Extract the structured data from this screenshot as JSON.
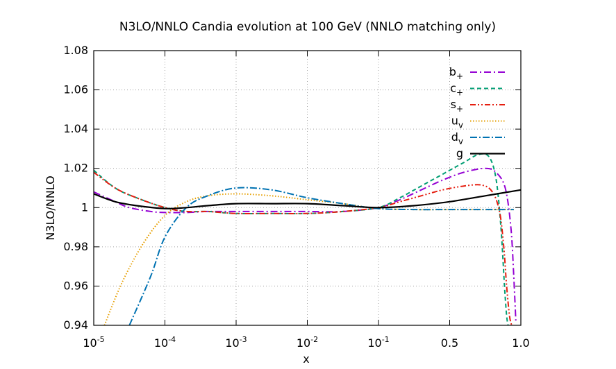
{
  "chart_data": {
    "type": "line",
    "title": "N3LO/NNLO Candia evolution at 100 GeV (NNLO matching only)",
    "xlabel": "x",
    "ylabel": "N3LO/NNLO",
    "ylim": [
      0.94,
      1.08
    ],
    "yticks": [
      "0.94",
      "0.96",
      "0.98",
      "1",
      "1.02",
      "1.04",
      "1.06",
      "1.08"
    ],
    "xticks": [
      {
        "base": "10",
        "exp": "-5"
      },
      {
        "base": "10",
        "exp": "-4"
      },
      {
        "base": "10",
        "exp": "-3"
      },
      {
        "base": "10",
        "exp": "-2"
      },
      {
        "base": "10",
        "exp": "-1"
      },
      {
        "base": "0.5",
        "exp": ""
      },
      {
        "base": "1.0",
        "exp": ""
      }
    ],
    "x_scale_note": "x-axis is logarithmic from 1e-5 to 0.1, then linear from 0.1 to 1.0; positions below are in tick-index units (0 = 1e-5 ... 4 = 0.1, 5 = 0.5, 6 = 1.0)",
    "grid": true,
    "legend_position": "top-right",
    "series": [
      {
        "name": "b",
        "sub": "+",
        "color": "#9400d3",
        "dash": "10 4 2 4",
        "x": [
          0,
          0.3,
          0.5,
          0.8,
          1.0,
          1.3,
          1.6,
          2.0,
          2.5,
          3.0,
          3.5,
          4.0,
          4.3,
          4.6,
          4.9,
          5.2,
          5.5,
          5.65,
          5.78,
          5.86,
          5.9,
          5.93
        ],
        "y": [
          1.008,
          1.003,
          1.0,
          0.998,
          0.9975,
          0.9975,
          0.998,
          0.998,
          0.998,
          0.998,
          0.998,
          1.0,
          1.004,
          1.009,
          1.014,
          1.018,
          1.02,
          1.018,
          1.01,
          0.99,
          0.965,
          0.942
        ]
      },
      {
        "name": "c",
        "sub": "+",
        "color": "#009e73",
        "dash": "6 4",
        "x": [
          0,
          0.3,
          0.6,
          1.0,
          1.3,
          1.6,
          2.0,
          2.5,
          3.0,
          3.5,
          4.0,
          4.3,
          4.6,
          4.9,
          5.2,
          5.4,
          5.55,
          5.65,
          5.72,
          5.77,
          5.8,
          5.82
        ],
        "y": [
          1.019,
          1.01,
          1.005,
          1.0,
          0.998,
          0.998,
          0.997,
          0.997,
          0.997,
          0.998,
          1.0,
          1.005,
          1.011,
          1.017,
          1.023,
          1.027,
          1.026,
          1.015,
          0.99,
          0.96,
          0.945,
          0.94
        ]
      },
      {
        "name": "s",
        "sub": "+",
        "color": "#e51e10",
        "dash": "8 3 2 3 2 3",
        "x": [
          0,
          0.3,
          0.6,
          1.0,
          1.3,
          1.6,
          2.0,
          2.5,
          3.0,
          3.5,
          4.0,
          4.3,
          4.6,
          4.9,
          5.2,
          5.45,
          5.6,
          5.7,
          5.76,
          5.8,
          5.84,
          5.87
        ],
        "y": [
          1.018,
          1.01,
          1.005,
          1.0,
          0.998,
          0.998,
          0.997,
          0.997,
          0.997,
          0.998,
          1.0,
          1.003,
          1.006,
          1.009,
          1.011,
          1.0115,
          1.008,
          0.998,
          0.98,
          0.96,
          0.945,
          0.94
        ]
      },
      {
        "name": "u",
        "sub": "v",
        "color": "#e69f00",
        "dash": "1.5 2.5",
        "x": [
          0.15,
          0.4,
          0.7,
          1.0,
          1.3,
          1.6,
          2.0,
          2.5,
          3.0,
          3.5,
          4.0,
          4.5,
          5.0,
          5.5,
          5.9
        ],
        "y": [
          0.94,
          0.962,
          0.982,
          0.996,
          1.003,
          1.006,
          1.007,
          1.006,
          1.004,
          1.002,
          0.9995,
          0.999,
          0.999,
          0.999,
          0.999
        ]
      },
      {
        "name": "d",
        "sub": "v",
        "color": "#0072b2",
        "dash": "10 3 2 3",
        "x": [
          0.5,
          0.8,
          1.0,
          1.3,
          1.6,
          2.0,
          2.5,
          3.0,
          3.5,
          4.0,
          4.5,
          5.0,
          5.5,
          5.9
        ],
        "y": [
          0.94,
          0.965,
          0.985,
          1.0,
          1.006,
          1.01,
          1.009,
          1.005,
          1.002,
          0.9995,
          0.999,
          0.999,
          0.999,
          0.999
        ]
      },
      {
        "name": "g",
        "sub": "",
        "color": "#000000",
        "dash": "",
        "x": [
          0,
          0.3,
          0.6,
          1.0,
          1.3,
          1.6,
          2.0,
          2.5,
          3.0,
          3.5,
          4.0,
          4.5,
          5.0,
          5.5,
          6.0
        ],
        "y": [
          1.007,
          1.003,
          1.001,
          0.9995,
          1.0,
          1.001,
          1.002,
          1.002,
          1.002,
          1.001,
          1.0,
          1.001,
          1.003,
          1.006,
          1.009
        ]
      }
    ]
  }
}
